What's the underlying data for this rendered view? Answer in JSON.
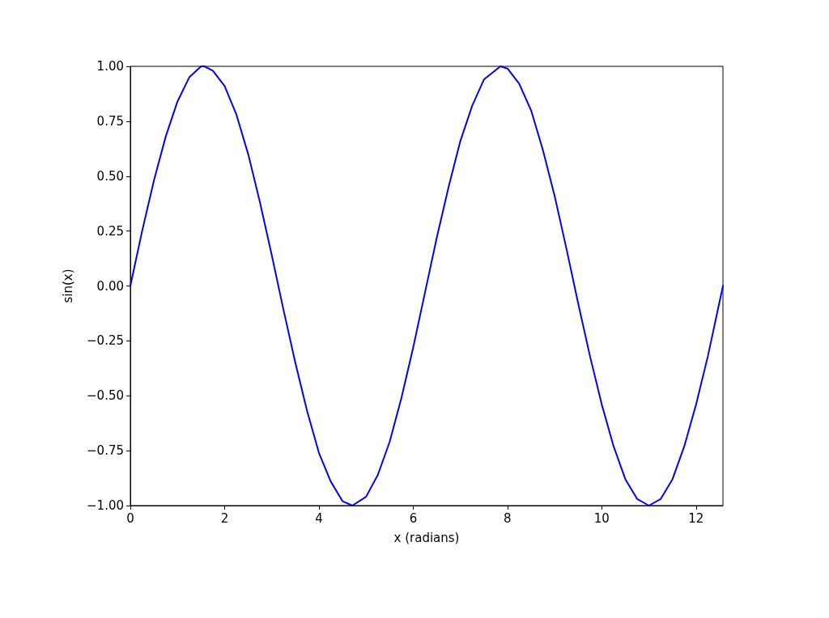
{
  "chart_data": {
    "type": "line",
    "xlabel": "x (radians)",
    "ylabel": "sin(x)",
    "x": [
      0,
      0.25,
      0.5,
      0.75,
      1,
      1.25,
      1.5,
      1.57,
      1.75,
      2,
      2.25,
      2.5,
      2.75,
      3,
      3.25,
      3.5,
      3.75,
      4,
      4.25,
      4.5,
      4.71,
      5,
      5.25,
      5.5,
      5.75,
      6,
      6.25,
      6.5,
      6.75,
      7,
      7.25,
      7.5,
      7.85,
      8,
      8.25,
      8.5,
      8.75,
      9,
      9.25,
      9.5,
      9.75,
      10,
      10.25,
      10.5,
      10.75,
      11,
      11.25,
      11.5,
      11.75,
      12,
      12.25,
      12.5,
      12.57
    ],
    "series": [
      {
        "color": "#0000ff",
        "values": [
          0,
          0.25,
          0.48,
          0.68,
          0.84,
          0.95,
          1.0,
          1.0,
          0.98,
          0.91,
          0.78,
          0.6,
          0.38,
          0.14,
          -0.11,
          -0.35,
          -0.57,
          -0.76,
          -0.89,
          -0.98,
          -1.0,
          -0.96,
          -0.86,
          -0.71,
          -0.51,
          -0.28,
          -0.03,
          0.22,
          0.45,
          0.66,
          0.82,
          0.94,
          1.0,
          0.99,
          0.92,
          0.8,
          0.62,
          0.41,
          0.17,
          -0.08,
          -0.32,
          -0.54,
          -0.73,
          -0.88,
          -0.97,
          -1.0,
          -0.97,
          -0.88,
          -0.73,
          -0.54,
          -0.32,
          -0.07,
          0.0
        ]
      }
    ],
    "xlim": [
      0,
      12.57
    ],
    "xticks": [
      0,
      2,
      4,
      6,
      8,
      10,
      12
    ],
    "ylim": [
      -1,
      1
    ],
    "yticks": [
      {
        "value": -1,
        "label": "−1.00"
      },
      {
        "value": -0.75,
        "label": "−0.75"
      },
      {
        "value": -0.5,
        "label": "−0.50"
      },
      {
        "value": -0.25,
        "label": "−0.25"
      },
      {
        "value": 0,
        "label": "0.00"
      },
      {
        "value": 0.25,
        "label": "0.25"
      },
      {
        "value": 0.5,
        "label": "0.50"
      },
      {
        "value": 0.75,
        "label": "0.75"
      },
      {
        "value": 1,
        "label": "1.00"
      }
    ],
    "grid": false,
    "marker": "none",
    "line_style": "solid"
  }
}
